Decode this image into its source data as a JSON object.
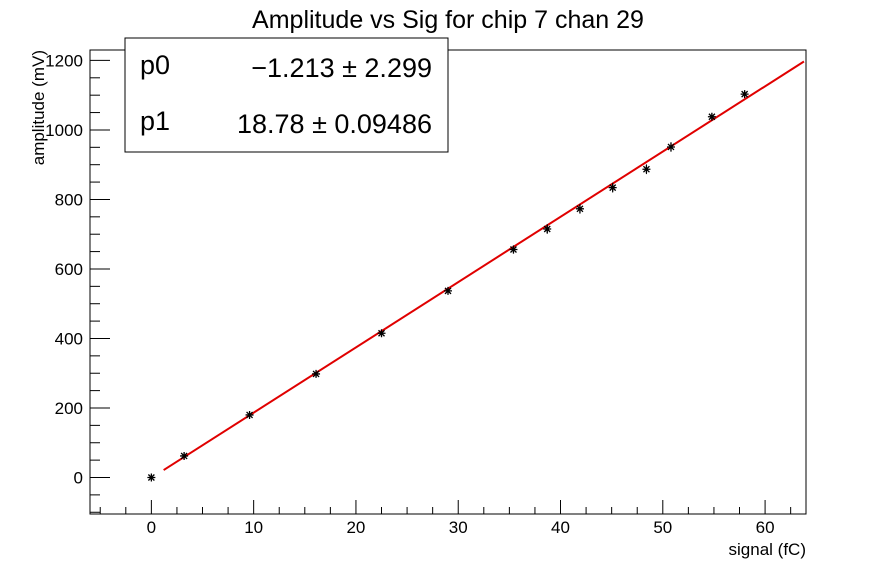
{
  "chart_data": {
    "type": "scatter",
    "title": "Amplitude vs Sig for chip 7 chan 29",
    "xlabel": "signal (fC)",
    "ylabel": "amplitude (mV)",
    "xlim": [
      -6,
      64
    ],
    "ylim": [
      -105,
      1230
    ],
    "x_ticks": [
      0,
      10,
      20,
      30,
      40,
      50,
      60
    ],
    "y_ticks": [
      0,
      200,
      400,
      600,
      800,
      1000,
      1200
    ],
    "grid": false,
    "points": [
      {
        "x": 0,
        "y": 0,
        "err": 6
      },
      {
        "x": 3.2,
        "y": 62,
        "err": 8
      },
      {
        "x": 9.6,
        "y": 180,
        "err": 8
      },
      {
        "x": 16.1,
        "y": 298,
        "err": 8
      },
      {
        "x": 22.5,
        "y": 415,
        "err": 10
      },
      {
        "x": 29,
        "y": 537,
        "err": 10
      },
      {
        "x": 35.4,
        "y": 656,
        "err": 12
      },
      {
        "x": 38.7,
        "y": 715,
        "err": 14
      },
      {
        "x": 41.9,
        "y": 773,
        "err": 14
      },
      {
        "x": 45.1,
        "y": 834,
        "err": 14
      },
      {
        "x": 48.4,
        "y": 887,
        "err": 14
      },
      {
        "x": 50.8,
        "y": 951,
        "err": 14
      },
      {
        "x": 54.8,
        "y": 1038,
        "err": 10
      },
      {
        "x": 58,
        "y": 1103,
        "err": 10
      }
    ],
    "fit": {
      "color": "#e00000",
      "x_range": [
        1.2,
        63.8
      ],
      "intercept": -1.213,
      "slope": 18.78
    },
    "stats": {
      "position": "top-left",
      "rows": [
        {
          "name": "p0",
          "value": "−1.213 ± 2.299"
        },
        {
          "name": "p1",
          "value": "18.78 ± 0.09486"
        }
      ]
    }
  }
}
